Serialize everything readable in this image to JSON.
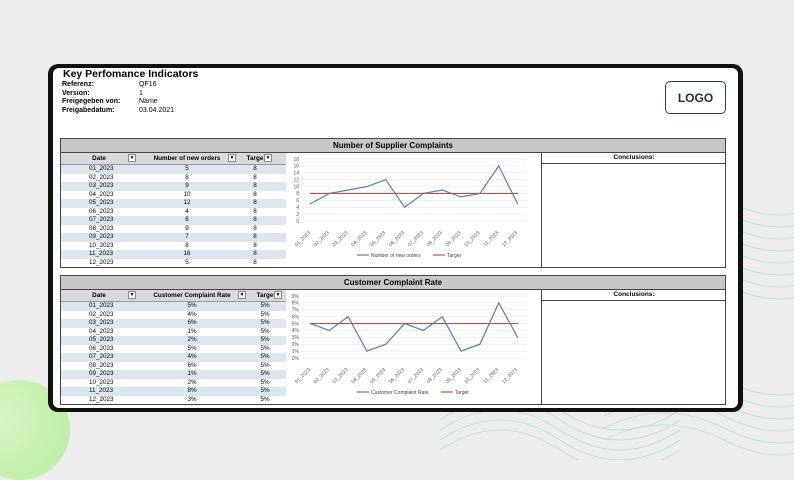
{
  "header": {
    "title": "Key Perfomance Indicators",
    "meta": [
      {
        "label": "Referenz:",
        "value": "QF16"
      },
      {
        "label": "Version:",
        "value": "1"
      },
      {
        "label": "Freigegeben von:",
        "value": "Name"
      },
      {
        "label": "Freigabedatum:",
        "value": "03.04.2021"
      }
    ],
    "logo": "LOGO"
  },
  "section1": {
    "title": "Number of Supplier Complaints",
    "columns": [
      "Date",
      "Number of new orders",
      "Targe"
    ],
    "rows": [
      [
        "01_2023",
        "5",
        "8"
      ],
      [
        "02_2023",
        "8",
        "8"
      ],
      [
        "03_2023",
        "9",
        "8"
      ],
      [
        "04_2023",
        "10",
        "8"
      ],
      [
        "05_2023",
        "12",
        "8"
      ],
      [
        "06_2023",
        "4",
        "8"
      ],
      [
        "07_2023",
        "8",
        "8"
      ],
      [
        "08_2023",
        "9",
        "8"
      ],
      [
        "09_2023",
        "7",
        "8"
      ],
      [
        "10_2023",
        "8",
        "8"
      ],
      [
        "11_2023",
        "16",
        "8"
      ],
      [
        "12_2023",
        "5",
        "8"
      ]
    ],
    "conclusions_label": "Conclusions:"
  },
  "section2": {
    "title": "Customer Complaint Rate",
    "columns": [
      "Date",
      "Customer Complaint Rate",
      "Targe"
    ],
    "rows": [
      [
        "01_2023",
        "5%",
        "5%"
      ],
      [
        "02_2023",
        "4%",
        "5%"
      ],
      [
        "03_2023",
        "6%",
        "5%"
      ],
      [
        "04_2023",
        "1%",
        "5%"
      ],
      [
        "05_2023",
        "2%",
        "5%"
      ],
      [
        "06_2023",
        "5%",
        "5%"
      ],
      [
        "07_2023",
        "4%",
        "5%"
      ],
      [
        "08_2023",
        "6%",
        "5%"
      ],
      [
        "09_2023",
        "1%",
        "5%"
      ],
      [
        "10_2023",
        "2%",
        "5%"
      ],
      [
        "11_2023",
        "8%",
        "5%"
      ],
      [
        "12_2023",
        "3%",
        "5%"
      ]
    ],
    "conclusions_label": "Conclusions:"
  },
  "chart_data": [
    {
      "type": "line",
      "title": "",
      "x": [
        "01_2023",
        "02_2023",
        "03_2023",
        "04_2023",
        "05_2023",
        "06_2023",
        "07_2023",
        "08_2023",
        "09_2023",
        "10_2023",
        "11_2023",
        "12_2023"
      ],
      "series": [
        {
          "name": "Number of new orders",
          "values": [
            5,
            8,
            9,
            10,
            12,
            4,
            8,
            9,
            7,
            8,
            16,
            5
          ],
          "color": "#4f81bd"
        },
        {
          "name": "Target",
          "values": [
            8,
            8,
            8,
            8,
            8,
            8,
            8,
            8,
            8,
            8,
            8,
            8
          ],
          "color": "#c0504d"
        }
      ],
      "yticks": [
        "0",
        "2",
        "4",
        "6",
        "8",
        "10",
        "12",
        "14",
        "16",
        "18"
      ],
      "ylim": [
        0,
        18
      ],
      "legend": "bottom",
      "grid": true
    },
    {
      "type": "line",
      "title": "",
      "x": [
        "01_2023",
        "02_2023",
        "03_2023",
        "04_2023",
        "05_2023",
        "06_2023",
        "07_2023",
        "08_2023",
        "09_2023",
        "10_2023",
        "11_2023",
        "12_2023"
      ],
      "series": [
        {
          "name": "Customer Complaint Rate",
          "values": [
            5,
            4,
            6,
            1,
            2,
            5,
            4,
            6,
            1,
            2,
            8,
            3
          ],
          "color": "#4f81bd"
        },
        {
          "name": "Target",
          "values": [
            5,
            5,
            5,
            5,
            5,
            5,
            5,
            5,
            5,
            5,
            5,
            5
          ],
          "color": "#c0504d"
        }
      ],
      "yticks": [
        "0%",
        "1%",
        "2%",
        "3%",
        "4%",
        "5%",
        "6%",
        "7%",
        "8%",
        "9%"
      ],
      "ylim": [
        0,
        9
      ],
      "legend": "bottom",
      "grid": true
    }
  ]
}
